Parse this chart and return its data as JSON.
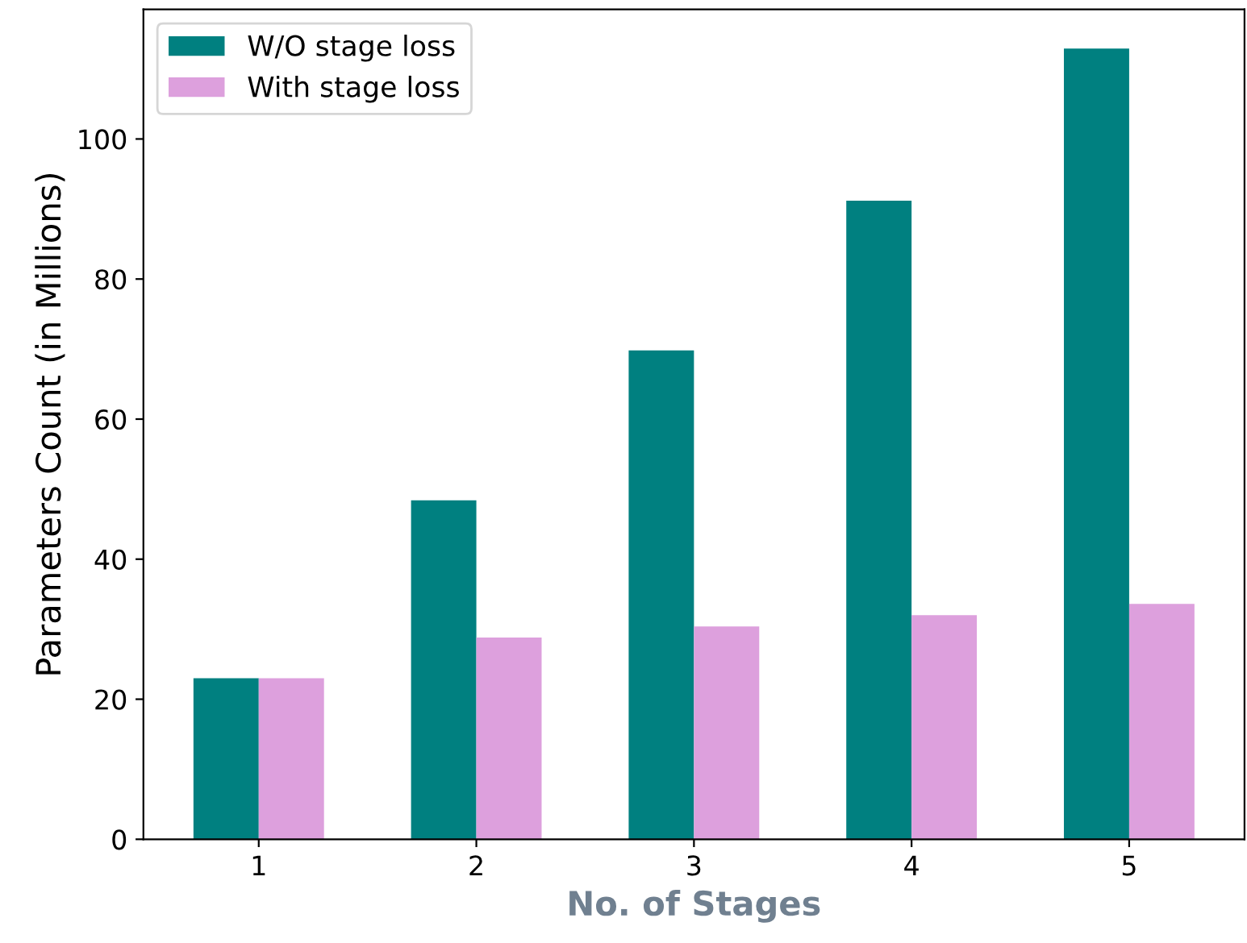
{
  "chart_data": {
    "type": "bar",
    "xlabel": "No. of Stages",
    "ylabel": "Parameters Count (in Millions)",
    "categories": [
      "1",
      "2",
      "3",
      "4",
      "5"
    ],
    "series": [
      {
        "name": "W/O stage loss",
        "color": "#008080",
        "values": [
          23.0,
          48.4,
          69.8,
          91.2,
          112.9
        ]
      },
      {
        "name": "With stage loss",
        "color": "#dda0dd",
        "values": [
          23.0,
          28.8,
          30.4,
          32.0,
          33.6
        ]
      }
    ],
    "ylim": [
      0,
      118.5
    ],
    "yticks": [
      0,
      20,
      40,
      60,
      80,
      100
    ],
    "legend": "top left",
    "grid": false
  }
}
